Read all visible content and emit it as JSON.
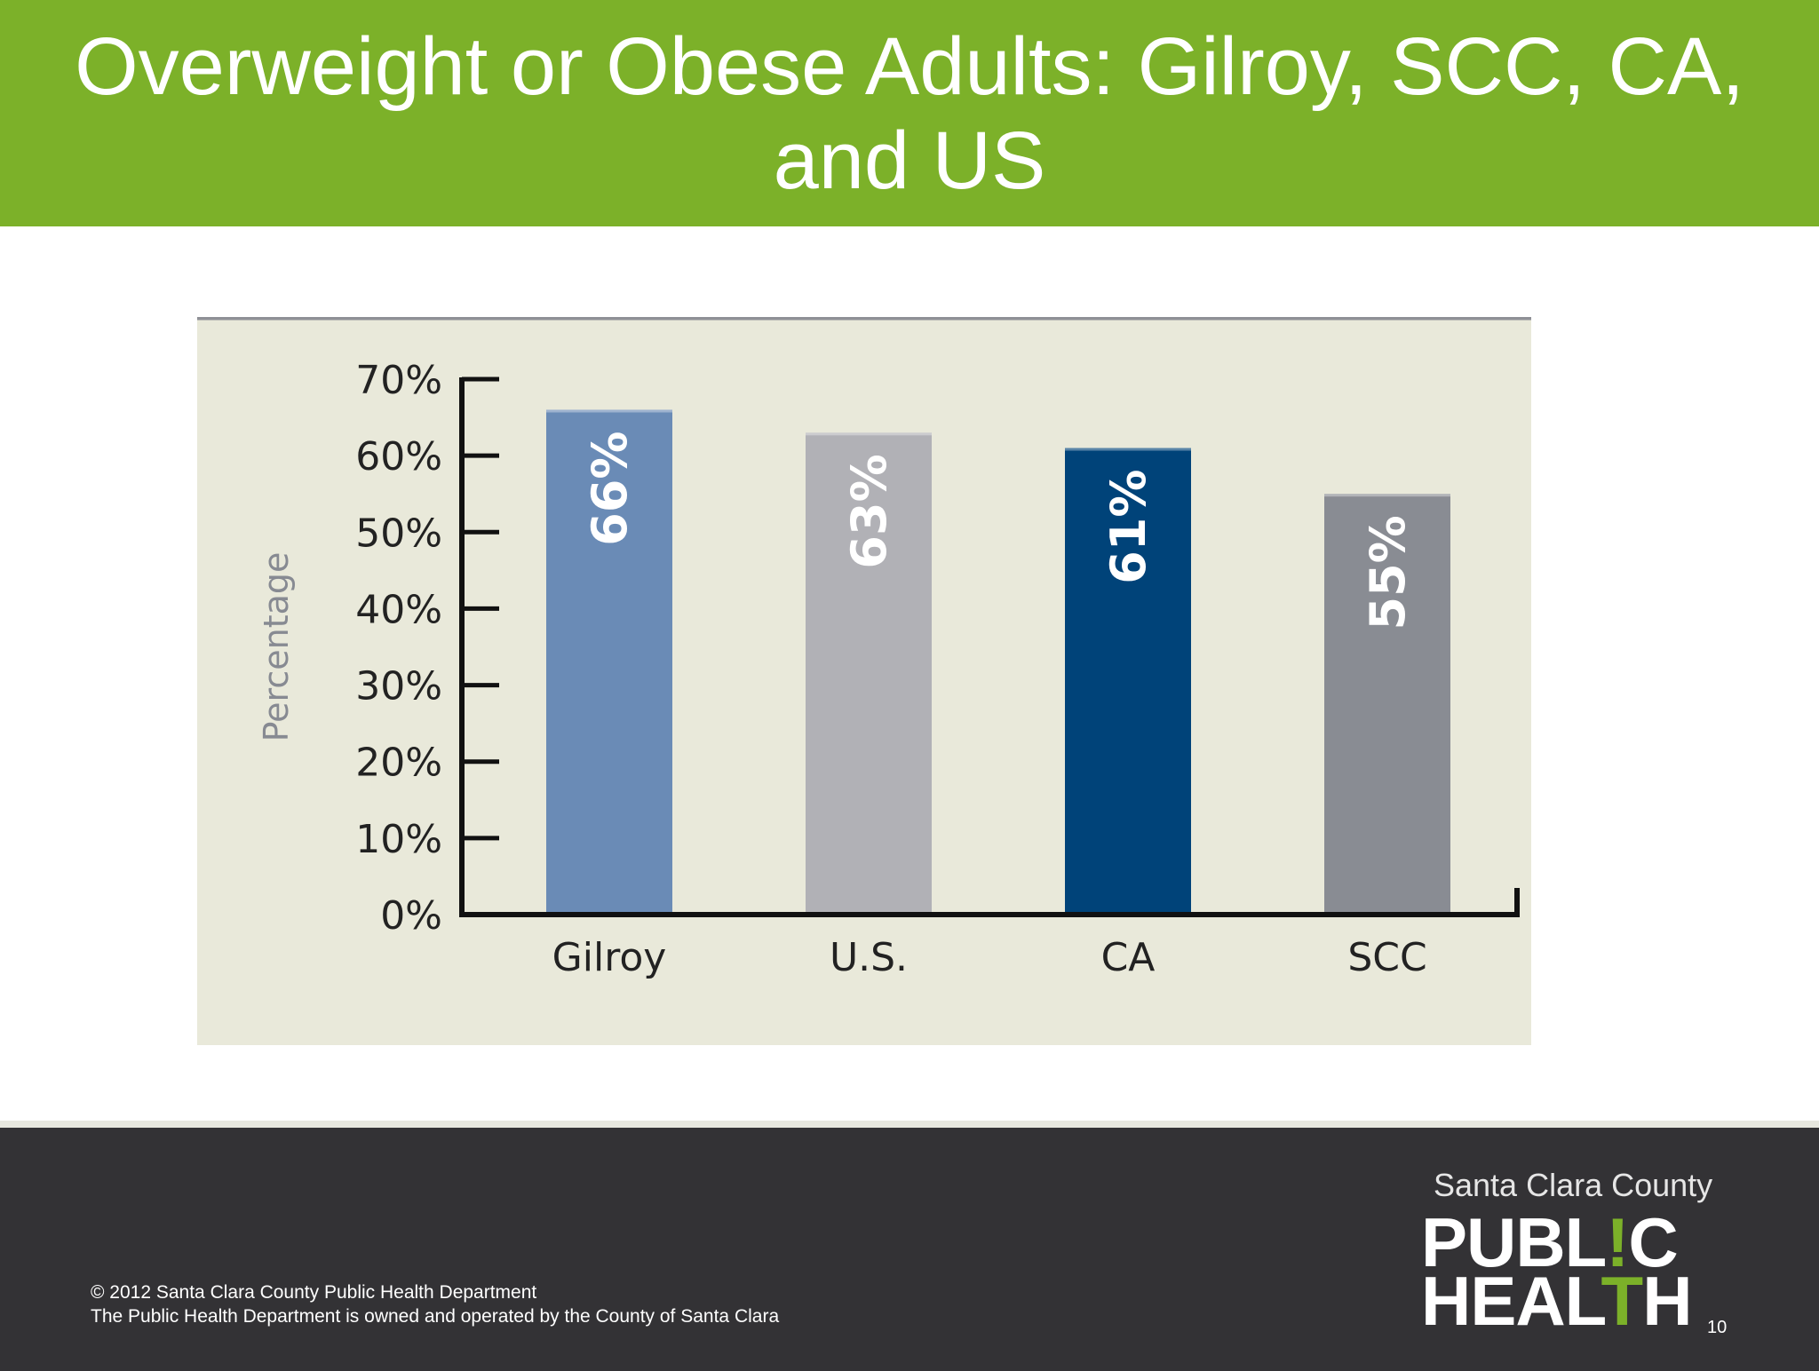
{
  "slide": {
    "title": "Overweight or Obese Adults: Gilroy, SCC, CA, and US",
    "page_number": "10"
  },
  "footer": {
    "copyright": "© 2012 Santa Clara County Public Health Department",
    "note": "The Public Health Department is owned and operated by the County of Santa Clara"
  },
  "logo": {
    "county": "Santa Clara County",
    "public_left": "PUBL",
    "public_accent": "!",
    "public_right": "C",
    "health_left": "HEAL",
    "health_accent": "T",
    "health_right": "H"
  },
  "colors": {
    "header": "#7cb129",
    "footer": "#333235",
    "chart_background": "#e9e9da"
  },
  "chart_data": {
    "type": "bar",
    "title": "",
    "xlabel": "",
    "ylabel": "Percentage",
    "categories": [
      "Gilroy",
      "U.S.",
      "CA",
      "SCC"
    ],
    "values": [
      66,
      63,
      61,
      55
    ],
    "data_labels": [
      "66%",
      "63%",
      "61%",
      "55%"
    ],
    "bar_colors": [
      "#6a8bb6",
      "#b1b1b6",
      "#004379",
      "#898c93"
    ],
    "ylim": [
      0,
      70
    ],
    "yticks": [
      0,
      10,
      20,
      30,
      40,
      50,
      60,
      70
    ],
    "ytick_labels": [
      "0%",
      "10%",
      "20%",
      "30%",
      "40%",
      "50%",
      "60%",
      "70%"
    ],
    "grid": false,
    "legend": "none"
  }
}
